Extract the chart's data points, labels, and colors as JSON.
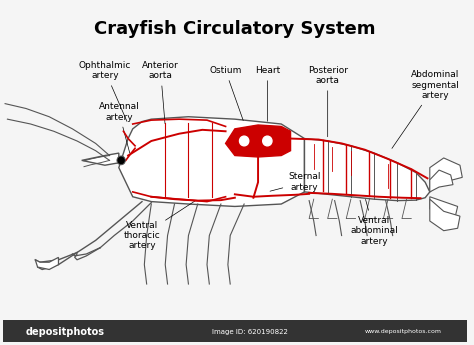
{
  "title": "Crayfish Circulatory System",
  "title_fontsize": 13,
  "title_fontweight": "bold",
  "bg_color": "#f5f5f5",
  "body_edge_color": "#555555",
  "artery_color": "#cc0000",
  "label_fontsize": 6.5,
  "watermark_text": "depositphotos",
  "image_id": "Image ID: 620190822",
  "website": "www.depositphotos.com",
  "lw_body": 1.0,
  "lw_art": 1.4
}
